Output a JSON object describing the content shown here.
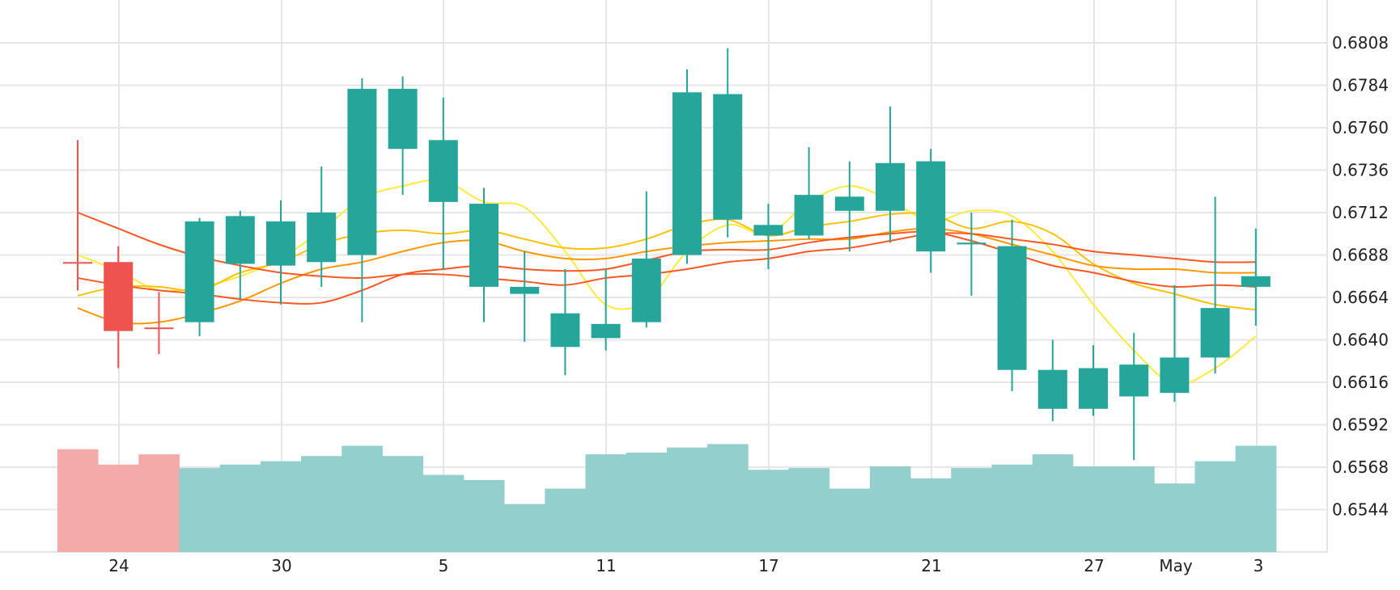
{
  "chart_data": {
    "type": "candlestick",
    "x_tick_labels": [
      "24",
      "30",
      "5",
      "11",
      "17",
      "21",
      "27",
      "May",
      "3"
    ],
    "y_tick_labels": [
      "0.6808",
      "0.6784",
      "0.6760",
      "0.6736",
      "0.6712",
      "0.6688",
      "0.6664",
      "0.6640",
      "0.6616",
      "0.6592",
      "0.6568",
      "0.6544"
    ],
    "ylim": [
      0.6523,
      0.6821
    ],
    "grid": true,
    "colors": {
      "up": "#26a69a",
      "down": "#ef5350",
      "volume_up": "#92cfcd",
      "volume_down": "#f4aaa8",
      "ma_yellow": "#ffeb3b",
      "ma_amber": "#ffc107",
      "ma_orange": "#ff9800",
      "ma_red": "#ff5722",
      "grid": "#e6e6e6"
    },
    "candles": [
      {
        "o": 0.6684,
        "h": 0.6753,
        "l": 0.6668,
        "c": 0.6684
      },
      {
        "o": 0.6684,
        "h": 0.6693,
        "l": 0.6624,
        "c": 0.6645
      },
      {
        "o": 0.6647,
        "h": 0.6667,
        "l": 0.6632,
        "c": 0.6647
      },
      {
        "o": 0.665,
        "h": 0.6709,
        "l": 0.6642,
        "c": 0.6707
      },
      {
        "o": 0.6683,
        "h": 0.6713,
        "l": 0.6663,
        "c": 0.671
      },
      {
        "o": 0.6682,
        "h": 0.6719,
        "l": 0.666,
        "c": 0.6707
      },
      {
        "o": 0.6684,
        "h": 0.6738,
        "l": 0.667,
        "c": 0.6712
      },
      {
        "o": 0.6688,
        "h": 0.6788,
        "l": 0.665,
        "c": 0.6782
      },
      {
        "o": 0.6748,
        "h": 0.6789,
        "l": 0.6722,
        "c": 0.6782
      },
      {
        "o": 0.6718,
        "h": 0.6777,
        "l": 0.668,
        "c": 0.6753
      },
      {
        "o": 0.667,
        "h": 0.6726,
        "l": 0.665,
        "c": 0.6717
      },
      {
        "o": 0.6666,
        "h": 0.669,
        "l": 0.6639,
        "c": 0.667
      },
      {
        "o": 0.6636,
        "h": 0.668,
        "l": 0.662,
        "c": 0.6655
      },
      {
        "o": 0.6641,
        "h": 0.668,
        "l": 0.6634,
        "c": 0.6649
      },
      {
        "o": 0.665,
        "h": 0.6724,
        "l": 0.6647,
        "c": 0.6686
      },
      {
        "o": 0.6688,
        "h": 0.6793,
        "l": 0.6683,
        "c": 0.678
      },
      {
        "o": 0.6708,
        "h": 0.6805,
        "l": 0.6698,
        "c": 0.6779
      },
      {
        "o": 0.6699,
        "h": 0.6717,
        "l": 0.668,
        "c": 0.6705
      },
      {
        "o": 0.6699,
        "h": 0.6749,
        "l": 0.6697,
        "c": 0.6722
      },
      {
        "o": 0.6713,
        "h": 0.6741,
        "l": 0.669,
        "c": 0.6721
      },
      {
        "o": 0.6713,
        "h": 0.6772,
        "l": 0.6695,
        "c": 0.674
      },
      {
        "o": 0.669,
        "h": 0.6748,
        "l": 0.6678,
        "c": 0.6741
      },
      {
        "o": 0.6694,
        "h": 0.6712,
        "l": 0.6665,
        "c": 0.6695
      },
      {
        "o": 0.6623,
        "h": 0.6708,
        "l": 0.6611,
        "c": 0.6693
      },
      {
        "o": 0.6601,
        "h": 0.664,
        "l": 0.6594,
        "c": 0.6623
      },
      {
        "o": 0.6601,
        "h": 0.6637,
        "l": 0.6597,
        "c": 0.6624
      },
      {
        "o": 0.6608,
        "h": 0.6644,
        "l": 0.6572,
        "c": 0.6626
      },
      {
        "o": 0.661,
        "h": 0.6671,
        "l": 0.6605,
        "c": 0.663
      },
      {
        "o": 0.663,
        "h": 0.6721,
        "l": 0.6621,
        "c": 0.6658
      },
      {
        "o": 0.667,
        "h": 0.6703,
        "l": 0.6648,
        "c": 0.6676
      }
    ],
    "volume": [
      60,
      51,
      57,
      49,
      51,
      53,
      56,
      62,
      56,
      45,
      42,
      28,
      37,
      57,
      58,
      61,
      63,
      48,
      49,
      37,
      50,
      43,
      49,
      51,
      57,
      50,
      50,
      40,
      53,
      62
    ],
    "moving_averages": [
      {
        "color": "ma_yellow",
        "values": [
          0.6688,
          0.6679,
          0.6668,
          0.667,
          0.6676,
          0.6686,
          0.6702,
          0.672,
          0.6727,
          0.673,
          0.6718,
          0.6715,
          0.669,
          0.666,
          0.6662,
          0.669,
          0.6705,
          0.67,
          0.6718,
          0.6727,
          0.6719,
          0.6707,
          0.6713,
          0.671,
          0.669,
          0.666,
          0.6634,
          0.6615,
          0.6624,
          0.6642
        ]
      },
      {
        "color": "ma_amber",
        "values": [
          0.6665,
          0.667,
          0.667,
          0.6668,
          0.6678,
          0.6684,
          0.6694,
          0.67,
          0.6702,
          0.67,
          0.6702,
          0.6697,
          0.6692,
          0.6692,
          0.6697,
          0.6705,
          0.6708,
          0.6699,
          0.6704,
          0.6707,
          0.6711,
          0.6711,
          0.6703,
          0.6707,
          0.67,
          0.6683,
          0.6672,
          0.6666,
          0.666,
          0.6657
        ]
      },
      {
        "color": "ma_orange",
        "values": [
          0.6658,
          0.665,
          0.665,
          0.6655,
          0.6662,
          0.6672,
          0.668,
          0.6684,
          0.669,
          0.6695,
          0.6696,
          0.669,
          0.6686,
          0.6686,
          0.669,
          0.6693,
          0.6695,
          0.6696,
          0.6697,
          0.6697,
          0.6701,
          0.6703,
          0.67,
          0.6694,
          0.6688,
          0.6682,
          0.668,
          0.668,
          0.6678,
          0.6678
        ]
      },
      {
        "color": "ma_red",
        "values": [
          0.6675,
          0.6671,
          0.6668,
          0.6666,
          0.6663,
          0.6661,
          0.6661,
          0.6668,
          0.6677,
          0.668,
          0.6682,
          0.668,
          0.6679,
          0.668,
          0.6685,
          0.669,
          0.6691,
          0.6691,
          0.6695,
          0.6698,
          0.67,
          0.6701,
          0.6696,
          0.6689,
          0.6682,
          0.6678,
          0.6673,
          0.667,
          0.6671,
          0.667
        ]
      },
      {
        "color": "ma_red",
        "values": [
          0.6712,
          0.6703,
          0.6694,
          0.6687,
          0.6682,
          0.6678,
          0.6676,
          0.6675,
          0.6677,
          0.6677,
          0.6675,
          0.6673,
          0.6671,
          0.6675,
          0.6677,
          0.668,
          0.6684,
          0.6686,
          0.669,
          0.6692,
          0.6696,
          0.67,
          0.67,
          0.6697,
          0.6694,
          0.669,
          0.6688,
          0.6686,
          0.6684,
          0.6684
        ]
      }
    ]
  }
}
